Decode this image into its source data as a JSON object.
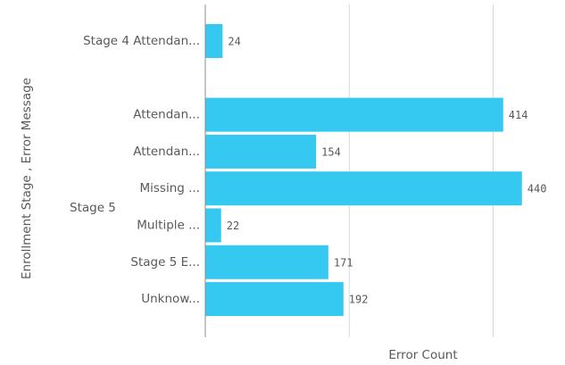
{
  "chart_data": {
    "type": "bar",
    "orientation": "horizontal",
    "x_label": "Error Count",
    "y_label": "Enrollment Stage , Error Message",
    "categories": [
      "Stage 4 Attendan...",
      "Attendan...",
      "Attendan...",
      "Missing ...",
      "Multiple ...",
      "Stage 5 E...",
      "Unknow..."
    ],
    "group_labels": [
      null,
      "Stage 5",
      "Stage 5",
      "Stage 5",
      "Stage 5",
      "Stage 5",
      "Stage 5"
    ],
    "values": [
      24,
      414,
      154,
      440,
      22,
      171,
      192
    ],
    "color": "#35c9f1",
    "xlim": [
      0,
      480
    ],
    "xticks": [
      0,
      200,
      400
    ],
    "grid": true
  }
}
